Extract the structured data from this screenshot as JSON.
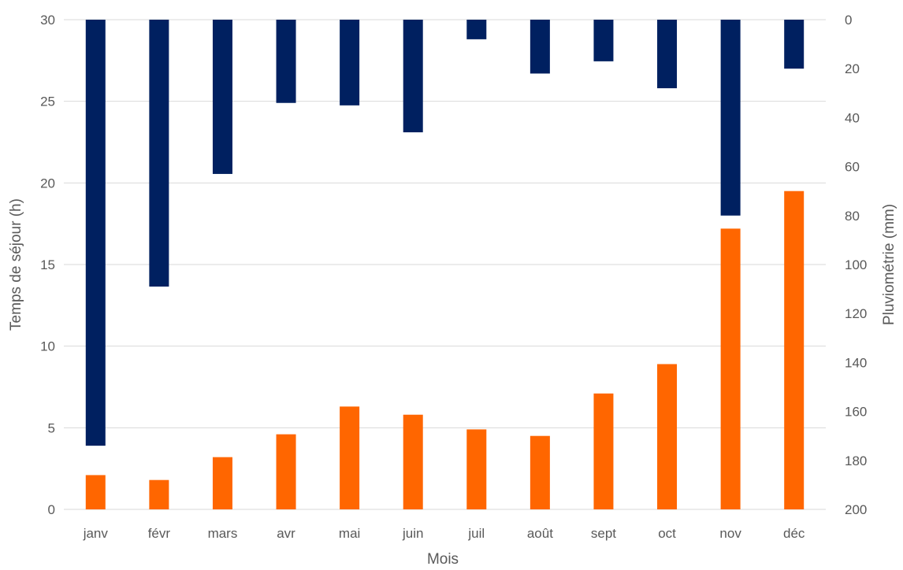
{
  "chart_data": {
    "type": "bar",
    "title": "",
    "xlabel": "Mois",
    "ylabel_left": "Temps de séjour (h)",
    "ylabel_right": "Pluviométrie (mm)",
    "categories": [
      "janv",
      "févr",
      "mars",
      "avr",
      "mai",
      "juin",
      "juil",
      "août",
      "sept",
      "oct",
      "nov",
      "déc"
    ],
    "left_axis": {
      "min": 0,
      "max": 30,
      "ticks": [
        0,
        5,
        10,
        15,
        20,
        25,
        30
      ]
    },
    "right_axis": {
      "min": 0,
      "max": 200,
      "ticks": [
        0,
        20,
        40,
        60,
        80,
        100,
        120,
        140,
        160,
        180,
        200
      ],
      "reversed": true
    },
    "grid": true,
    "series": [
      {
        "axis": "right",
        "color": "#002060",
        "values": [
          174,
          109,
          63,
          34,
          35,
          46,
          8,
          22,
          17,
          28,
          80,
          20
        ]
      },
      {
        "axis": "left",
        "color": "#ff6600",
        "values": [
          2.1,
          1.8,
          3.2,
          4.6,
          6.3,
          5.8,
          4.9,
          4.5,
          7.1,
          8.9,
          17.2,
          19.5
        ]
      }
    ]
  }
}
